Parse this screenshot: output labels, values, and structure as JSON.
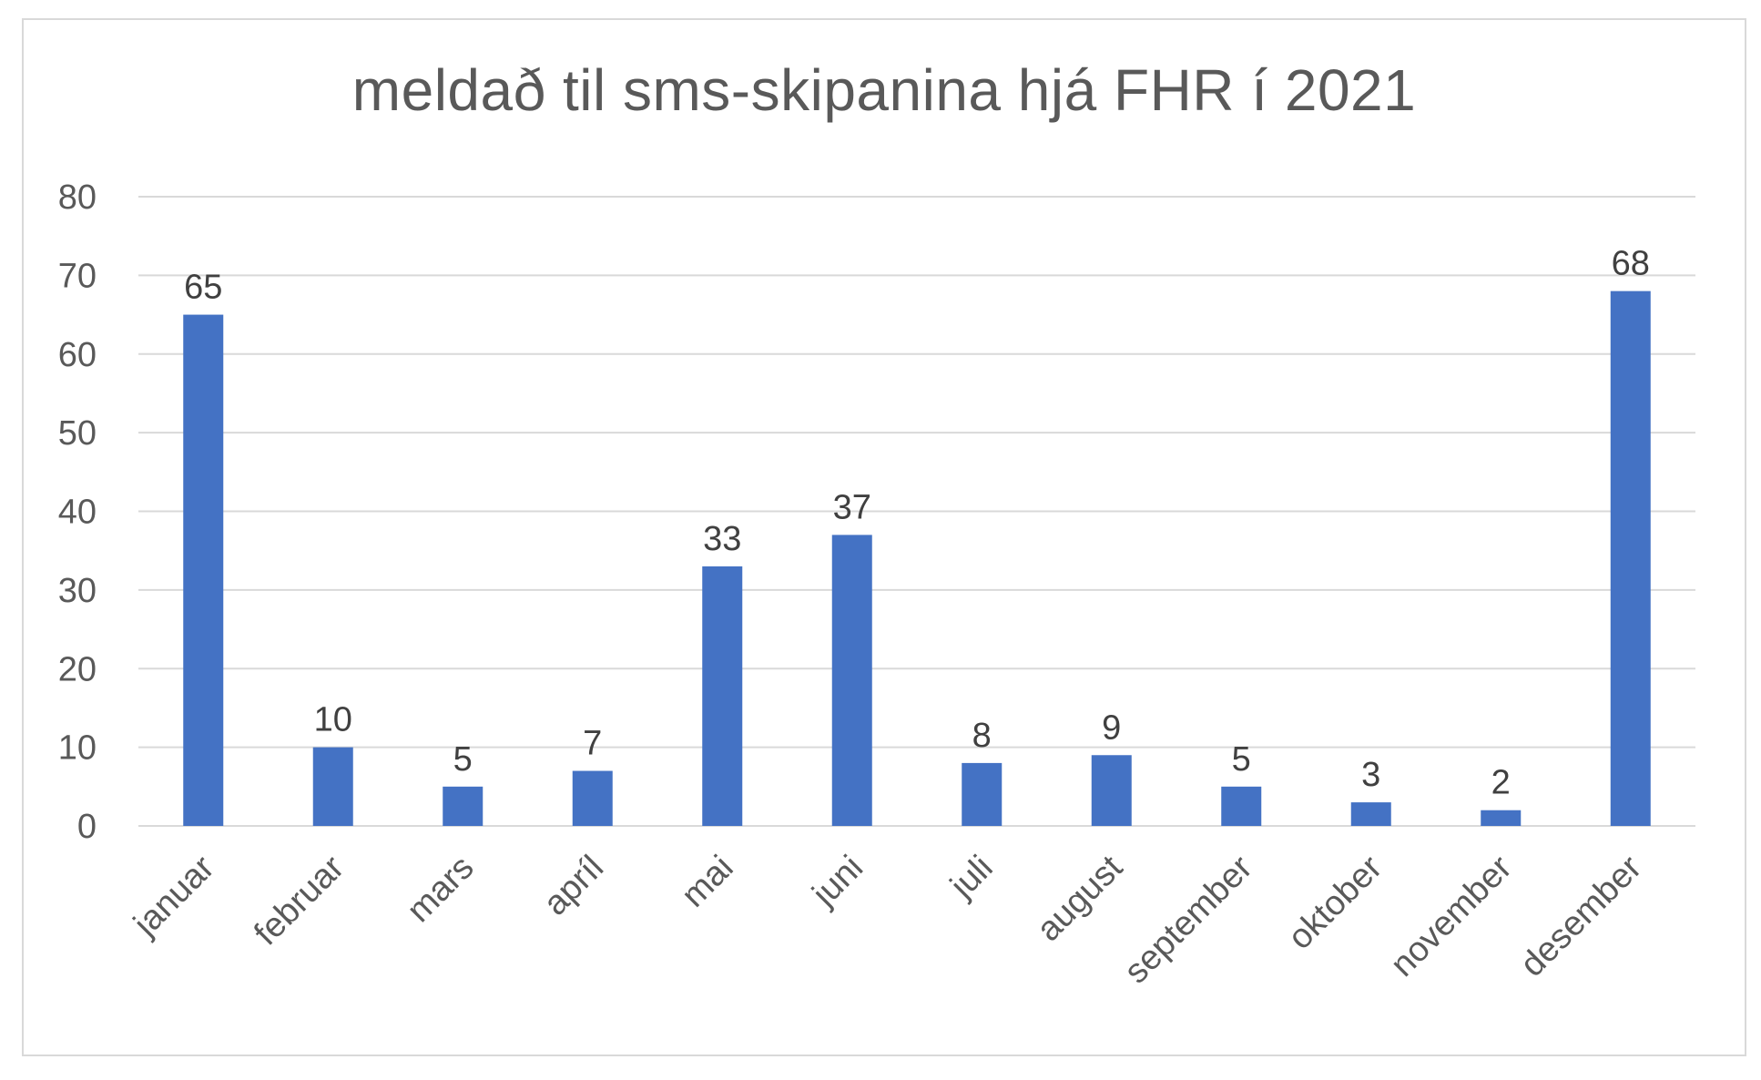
{
  "chart_data": {
    "type": "bar",
    "title": "meldað til sms-skipanina hjá FHR í 2021",
    "xlabel": "",
    "ylabel": "",
    "categories": [
      "januar",
      "februar",
      "mars",
      "apríl",
      "mai",
      "juni",
      "juli",
      "august",
      "september",
      "oktober",
      "november",
      "desember"
    ],
    "values": [
      65,
      10,
      5,
      7,
      33,
      37,
      8,
      9,
      5,
      3,
      2,
      68
    ],
    "ylim": [
      0,
      80
    ],
    "yticks": [
      0,
      10,
      20,
      30,
      40,
      50,
      60,
      70,
      80
    ],
    "grid": true,
    "legend": "none",
    "bar_color": "#4472c4",
    "grid_color": "#d9d9d9"
  }
}
